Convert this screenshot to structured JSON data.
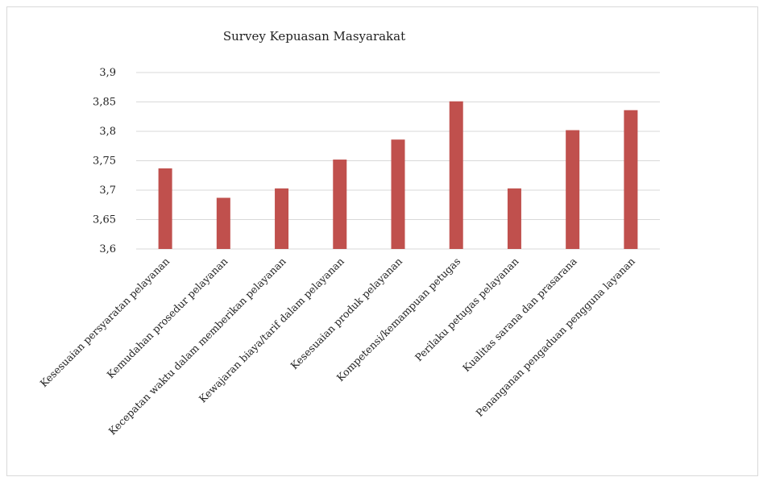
{
  "chart_data": {
    "type": "bar",
    "title": "Survey Kepuasan  Masyarakat",
    "xlabel": "",
    "ylabel": "",
    "ylim": [
      3.6,
      3.9
    ],
    "yticks": [
      "3,6",
      "3,65",
      "3,7",
      "3,75",
      "3,8",
      "3,85",
      "3,9"
    ],
    "ytick_values": [
      3.6,
      3.65,
      3.7,
      3.75,
      3.8,
      3.85,
      3.9
    ],
    "grid": true,
    "legend": "none",
    "bar_color": "#c0504d",
    "grid_color": "#d9d9d9",
    "categories": [
      "Kesesuaian persyaratan pelayanan",
      "Kemudahan prosedur pelayanan",
      "Kecepatan waktu dalam memberikan pelayanan",
      "Kewajaran biaya/tarif dalam pelayanan",
      "Kesesuaian produk pelayanan",
      "Kompetensi/kemampuan petugas",
      "Perilaku petugas pelayanan",
      "Kualitas sarana dan prasarana",
      "Penanganan pengaduan pengguna layanan"
    ],
    "values": [
      3.737,
      3.687,
      3.703,
      3.752,
      3.786,
      3.851,
      3.703,
      3.802,
      3.836
    ]
  }
}
